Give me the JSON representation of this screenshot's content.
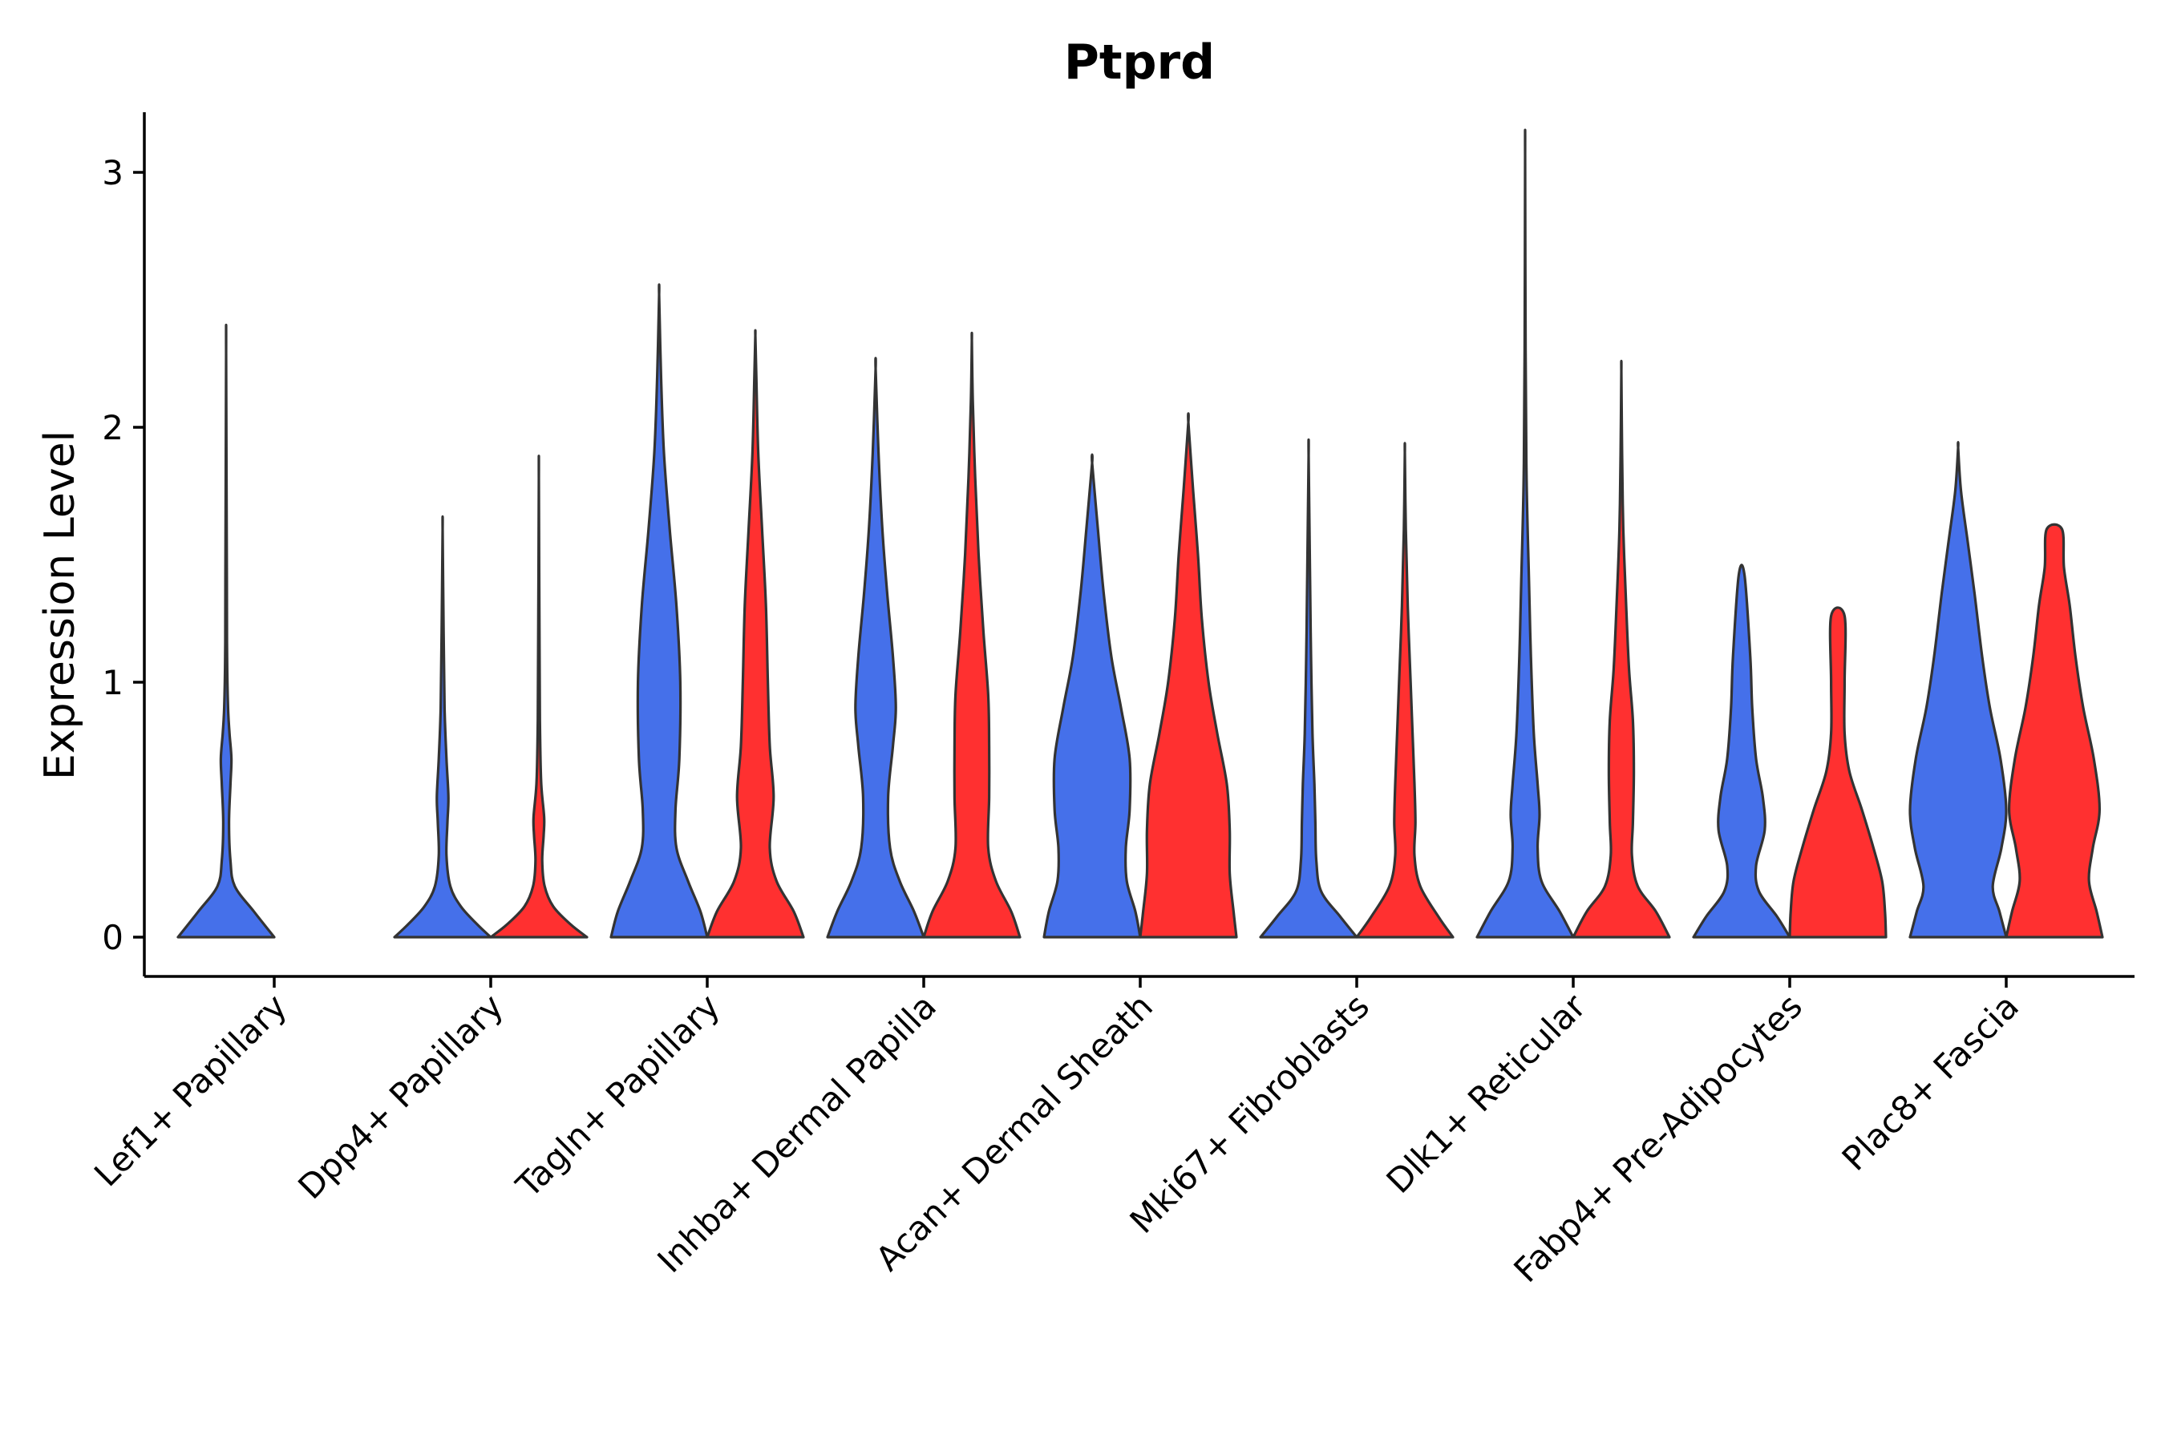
{
  "chart_data": {
    "type": "violin",
    "title": "Ptprd",
    "xlabel": "",
    "ylabel": "Expression Level",
    "ylim": [
      -0.15,
      3.22
    ],
    "yticks": [
      0,
      1,
      2,
      3
    ],
    "grid": false,
    "legend": "none",
    "categories": [
      "Lef1+ Papillary",
      "Dpp4+ Papillary",
      "Tagln+ Papillary",
      "Inhba+ Dermal Papilla",
      "Acan+ Dermal Sheath",
      "Mki67+ Fibroblasts",
      "Dlk1+ Reticular",
      "Fabp4+ Pre-Adipocytes",
      "Plac8+ Fascia"
    ],
    "groups": [
      {
        "color": "#4570EA"
      },
      {
        "color": "#FF3030"
      }
    ],
    "violins": [
      {
        "category": 0,
        "group": 0,
        "max": 2.29,
        "profile": [
          [
            0,
            1.0
          ],
          [
            0.1,
            0.58
          ],
          [
            0.2,
            0.18
          ],
          [
            0.3,
            0.09
          ],
          [
            0.45,
            0.06
          ],
          [
            0.6,
            0.09
          ],
          [
            0.7,
            0.11
          ],
          [
            0.8,
            0.07
          ],
          [
            0.9,
            0.04
          ],
          [
            1.1,
            0.02
          ],
          [
            1.4,
            0.015
          ],
          [
            2.29,
            0
          ]
        ]
      },
      {
        "category": 1,
        "group": 0,
        "max": 1.6,
        "profile": [
          [
            0,
            1.0
          ],
          [
            0.05,
            0.72
          ],
          [
            0.12,
            0.38
          ],
          [
            0.2,
            0.16
          ],
          [
            0.32,
            0.08
          ],
          [
            0.45,
            0.1
          ],
          [
            0.55,
            0.12
          ],
          [
            0.7,
            0.08
          ],
          [
            0.9,
            0.04
          ],
          [
            1.2,
            0.02
          ],
          [
            1.6,
            0
          ]
        ]
      },
      {
        "category": 1,
        "group": 1,
        "max": 1.8,
        "profile": [
          [
            0,
            1.0
          ],
          [
            0.05,
            0.66
          ],
          [
            0.12,
            0.3
          ],
          [
            0.2,
            0.12
          ],
          [
            0.3,
            0.07
          ],
          [
            0.4,
            0.1
          ],
          [
            0.47,
            0.11
          ],
          [
            0.6,
            0.05
          ],
          [
            0.8,
            0.025
          ],
          [
            1.1,
            0.015
          ],
          [
            1.8,
            0
          ]
        ]
      },
      {
        "category": 2,
        "group": 0,
        "max": 2.52,
        "profile": [
          [
            0,
            1.0
          ],
          [
            0.1,
            0.86
          ],
          [
            0.22,
            0.6
          ],
          [
            0.35,
            0.36
          ],
          [
            0.5,
            0.34
          ],
          [
            0.7,
            0.42
          ],
          [
            1.0,
            0.44
          ],
          [
            1.3,
            0.36
          ],
          [
            1.6,
            0.22
          ],
          [
            1.9,
            0.1
          ],
          [
            2.2,
            0.04
          ],
          [
            2.52,
            0
          ]
        ]
      },
      {
        "category": 2,
        "group": 1,
        "max": 2.36,
        "profile": [
          [
            0,
            1.0
          ],
          [
            0.1,
            0.8
          ],
          [
            0.22,
            0.44
          ],
          [
            0.35,
            0.3
          ],
          [
            0.55,
            0.38
          ],
          [
            0.75,
            0.3
          ],
          [
            1.0,
            0.26
          ],
          [
            1.3,
            0.22
          ],
          [
            1.6,
            0.14
          ],
          [
            1.9,
            0.06
          ],
          [
            2.2,
            0.02
          ],
          [
            2.36,
            0
          ]
        ]
      },
      {
        "category": 3,
        "group": 0,
        "max": 2.23,
        "profile": [
          [
            0,
            1.0
          ],
          [
            0.1,
            0.8
          ],
          [
            0.22,
            0.5
          ],
          [
            0.35,
            0.3
          ],
          [
            0.55,
            0.26
          ],
          [
            0.75,
            0.36
          ],
          [
            0.9,
            0.42
          ],
          [
            1.1,
            0.36
          ],
          [
            1.35,
            0.24
          ],
          [
            1.6,
            0.14
          ],
          [
            1.9,
            0.06
          ],
          [
            2.23,
            0
          ]
        ]
      },
      {
        "category": 3,
        "group": 1,
        "max": 2.34,
        "profile": [
          [
            0,
            1.0
          ],
          [
            0.1,
            0.82
          ],
          [
            0.22,
            0.5
          ],
          [
            0.35,
            0.34
          ],
          [
            0.55,
            0.36
          ],
          [
            0.75,
            0.36
          ],
          [
            0.95,
            0.34
          ],
          [
            1.2,
            0.24
          ],
          [
            1.5,
            0.14
          ],
          [
            1.8,
            0.07
          ],
          [
            2.1,
            0.02
          ],
          [
            2.34,
            0
          ]
        ]
      },
      {
        "category": 4,
        "group": 0,
        "max": 1.86,
        "profile": [
          [
            0,
            1.0
          ],
          [
            0.1,
            0.9
          ],
          [
            0.22,
            0.72
          ],
          [
            0.35,
            0.7
          ],
          [
            0.5,
            0.78
          ],
          [
            0.7,
            0.78
          ],
          [
            0.9,
            0.6
          ],
          [
            1.1,
            0.4
          ],
          [
            1.35,
            0.24
          ],
          [
            1.6,
            0.12
          ],
          [
            1.86,
            0
          ]
        ]
      },
      {
        "category": 4,
        "group": 1,
        "max": 2.02,
        "profile": [
          [
            0,
            1.0
          ],
          [
            0.1,
            0.94
          ],
          [
            0.25,
            0.86
          ],
          [
            0.42,
            0.86
          ],
          [
            0.6,
            0.8
          ],
          [
            0.8,
            0.6
          ],
          [
            1.0,
            0.42
          ],
          [
            1.25,
            0.28
          ],
          [
            1.5,
            0.2
          ],
          [
            1.75,
            0.1
          ],
          [
            2.02,
            0
          ]
        ]
      },
      {
        "category": 5,
        "group": 0,
        "max": 1.89,
        "profile": [
          [
            0,
            1.0
          ],
          [
            0.08,
            0.66
          ],
          [
            0.18,
            0.26
          ],
          [
            0.3,
            0.16
          ],
          [
            0.45,
            0.14
          ],
          [
            0.6,
            0.12
          ],
          [
            0.8,
            0.08
          ],
          [
            1.1,
            0.05
          ],
          [
            1.4,
            0.03
          ],
          [
            1.89,
            0
          ]
        ]
      },
      {
        "category": 5,
        "group": 1,
        "max": 1.9,
        "profile": [
          [
            0,
            1.0
          ],
          [
            0.08,
            0.7
          ],
          [
            0.2,
            0.32
          ],
          [
            0.32,
            0.2
          ],
          [
            0.45,
            0.22
          ],
          [
            0.6,
            0.2
          ],
          [
            0.8,
            0.16
          ],
          [
            1.0,
            0.12
          ],
          [
            1.3,
            0.06
          ],
          [
            1.6,
            0.02
          ],
          [
            1.9,
            0
          ]
        ]
      },
      {
        "category": 6,
        "group": 0,
        "max": 3.07,
        "profile": [
          [
            0,
            1.0
          ],
          [
            0.1,
            0.72
          ],
          [
            0.22,
            0.34
          ],
          [
            0.35,
            0.26
          ],
          [
            0.48,
            0.3
          ],
          [
            0.6,
            0.26
          ],
          [
            0.8,
            0.18
          ],
          [
            1.1,
            0.12
          ],
          [
            1.4,
            0.08
          ],
          [
            1.8,
            0.03
          ],
          [
            2.3,
            0.01
          ],
          [
            3.07,
            0
          ]
        ]
      },
      {
        "category": 6,
        "group": 1,
        "max": 2.22,
        "profile": [
          [
            0,
            1.0
          ],
          [
            0.1,
            0.72
          ],
          [
            0.2,
            0.34
          ],
          [
            0.32,
            0.22
          ],
          [
            0.45,
            0.24
          ],
          [
            0.65,
            0.26
          ],
          [
            0.85,
            0.24
          ],
          [
            1.05,
            0.16
          ],
          [
            1.3,
            0.1
          ],
          [
            1.6,
            0.04
          ],
          [
            1.9,
            0.015
          ],
          [
            2.22,
            0
          ]
        ]
      },
      {
        "category": 7,
        "group": 0,
        "max": 1.42,
        "profile": [
          [
            0,
            1.0
          ],
          [
            0.08,
            0.74
          ],
          [
            0.18,
            0.36
          ],
          [
            0.28,
            0.3
          ],
          [
            0.42,
            0.48
          ],
          [
            0.55,
            0.44
          ],
          [
            0.7,
            0.3
          ],
          [
            0.9,
            0.22
          ],
          [
            1.1,
            0.18
          ],
          [
            1.42,
            0.06
          ]
        ]
      },
      {
        "category": 7,
        "group": 1,
        "max": 1.26,
        "profile": [
          [
            0,
            1.0
          ],
          [
            0.1,
            0.98
          ],
          [
            0.22,
            0.92
          ],
          [
            0.35,
            0.74
          ],
          [
            0.5,
            0.5
          ],
          [
            0.65,
            0.24
          ],
          [
            0.8,
            0.14
          ],
          [
            1.0,
            0.14
          ],
          [
            1.26,
            0.14
          ]
        ]
      },
      {
        "category": 8,
        "group": 0,
        "max": 1.92,
        "profile": [
          [
            0,
            1.0
          ],
          [
            0.1,
            0.86
          ],
          [
            0.2,
            0.72
          ],
          [
            0.35,
            0.9
          ],
          [
            0.5,
            1.0
          ],
          [
            0.7,
            0.88
          ],
          [
            0.9,
            0.66
          ],
          [
            1.1,
            0.5
          ],
          [
            1.35,
            0.34
          ],
          [
            1.55,
            0.2
          ],
          [
            1.75,
            0.06
          ],
          [
            1.92,
            0
          ]
        ]
      },
      {
        "category": 8,
        "group": 1,
        "max": 1.6,
        "profile": [
          [
            0,
            1.0
          ],
          [
            0.1,
            0.88
          ],
          [
            0.22,
            0.72
          ],
          [
            0.35,
            0.8
          ],
          [
            0.5,
            0.94
          ],
          [
            0.7,
            0.82
          ],
          [
            0.9,
            0.6
          ],
          [
            1.1,
            0.44
          ],
          [
            1.3,
            0.32
          ],
          [
            1.45,
            0.2
          ],
          [
            1.6,
            0.16
          ]
        ]
      }
    ]
  }
}
